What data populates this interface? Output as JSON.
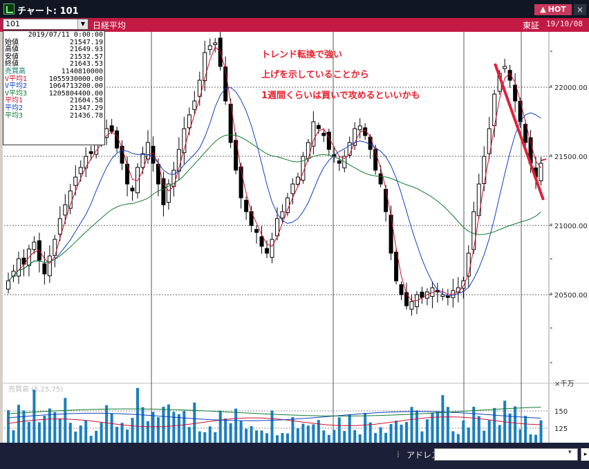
{
  "window": {
    "title": "チャート: 101",
    "hot_label": "HOT",
    "close_label": "×"
  },
  "toolbar": {
    "code_value": "101",
    "name": "日経平均",
    "exchange": "東証",
    "date": "19/10/08"
  },
  "infobox": {
    "datetime": "2019/07/11 0:00:00",
    "rows": [
      {
        "label": "始値",
        "value": "21547.19",
        "color": "#000000"
      },
      {
        "label": "高値",
        "value": "21649.93",
        "color": "#000000"
      },
      {
        "label": "安値",
        "value": "21532.57",
        "color": "#000000"
      },
      {
        "label": "終値",
        "value": "21643.53",
        "color": "#000000"
      },
      {
        "label": "売買高",
        "value": "1140810000",
        "color": "#0a7a6a"
      },
      {
        "label": "V平均1",
        "value": "1055930000.00",
        "color": "#cc1030"
      },
      {
        "label": "V平均2",
        "value": "1064713200.00",
        "color": "#1040c0"
      },
      {
        "label": "V平均3",
        "value": "1205804400.00",
        "color": "#107a30"
      },
      {
        "label": "平均1",
        "value": "21604.58",
        "color": "#cc1030"
      },
      {
        "label": "平均2",
        "value": "21347.29",
        "color": "#1040c0"
      },
      {
        "label": "平均3",
        "value": "21436.78",
        "color": "#107a30"
      }
    ]
  },
  "annotation": {
    "lines": [
      "トレンド転換で強い",
      "上げを示していることから",
      "1週間くらいは買いで攻めるといいかも"
    ],
    "color": "#e8222f"
  },
  "chart_data": {
    "type": "candlestick",
    "price_axis": {
      "ticks": [
        {
          "value": 22000,
          "label": "22000.00"
        },
        {
          "value": 21500,
          "label": "21500.00"
        },
        {
          "value": 21000,
          "label": "21000.00"
        },
        {
          "value": 20500,
          "label": "20500.00"
        }
      ],
      "range": [
        19860,
        22400
      ]
    },
    "volume_panel": {
      "label": "売買高 (5,25,75)",
      "unit_label": "×千万",
      "ticks": [
        {
          "value": 150,
          "label": "150"
        },
        {
          "value": 125,
          "label": "125"
        }
      ]
    },
    "closes": [
      20600,
      20670,
      20760,
      20720,
      20830,
      20880,
      20750,
      20650,
      20780,
      20900,
      21050,
      21150,
      21250,
      21350,
      21420,
      21500,
      21520,
      21600,
      21650,
      21700,
      21680,
      21560,
      21450,
      21300,
      21250,
      21420,
      21520,
      21600,
      21450,
      21300,
      21150,
      21300,
      21400,
      21550,
      21700,
      21800,
      21900,
      22050,
      22250,
      22300,
      22320,
      22150,
      21900,
      21600,
      21400,
      21200,
      21100,
      21000,
      20950,
      20850,
      20800,
      20900,
      21050,
      21100,
      21200,
      21300,
      21350,
      21500,
      21600,
      21750,
      21700,
      21650,
      21550,
      21500,
      21450,
      21500,
      21600,
      21700,
      21720,
      21650,
      21550,
      21400,
      21300,
      21100,
      20800,
      20600,
      20500,
      20420,
      20450,
      20500,
      20480,
      20520,
      20550,
      20520,
      20500,
      20480,
      20530,
      20550,
      20600,
      20800,
      21100,
      21300,
      21500,
      21700,
      21950,
      22100,
      22150,
      22050,
      21900,
      21750,
      21600,
      21450,
      21350,
      21450
    ]
  },
  "address_bar": {
    "label": "アドレス",
    "value": "",
    "go_label": "▸"
  }
}
